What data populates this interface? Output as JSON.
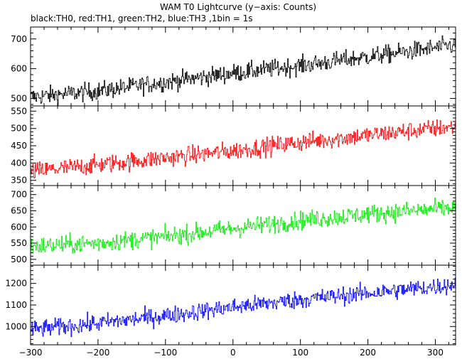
{
  "chart_data": {
    "type": "line",
    "title": "WAM T0 Lightcurve (y−axis: Counts)",
    "subtitle": "black:TH0, red:TH1, green:TH2, blue:TH3 ,1bin = 1s",
    "xlabel": "",
    "ylabel": "",
    "xlim": [
      -300,
      330
    ],
    "x_ticks": [
      -300,
      -200,
      -100,
      0,
      100,
      200,
      300
    ],
    "x_tick_labels": [
      "−300",
      "−200",
      "−100",
      "0",
      "100",
      "200",
      "300"
    ],
    "bin_size_s": 1,
    "grid": false,
    "legend": "none",
    "panels": [
      {
        "name": "TH0",
        "color": "#000000",
        "ylim": [
          475,
          740
        ],
        "y_ticks": [
          500,
          600,
          700
        ],
        "trend_x": [
          -300,
          -200,
          -100,
          0,
          100,
          200,
          300,
          330
        ],
        "trend_y": [
          505,
          525,
          555,
          585,
          610,
          640,
          670,
          680
        ],
        "noise_amplitude": 30
      },
      {
        "name": "TH1",
        "color": "#ff0000",
        "ylim": [
          335,
          565
        ],
        "y_ticks": [
          350,
          400,
          450,
          500,
          550
        ],
        "trend_x": [
          -300,
          -200,
          -100,
          0,
          100,
          200,
          300,
          330
        ],
        "trend_y": [
          375,
          395,
          415,
          435,
          460,
          480,
          500,
          505
        ],
        "noise_amplitude": 26
      },
      {
        "name": "TH2",
        "color": "#00ee00",
        "ylim": [
          482,
          728
        ],
        "y_ticks": [
          500,
          550,
          600,
          650,
          700
        ],
        "trend_x": [
          -300,
          -200,
          -100,
          0,
          100,
          200,
          300,
          330
        ],
        "trend_y": [
          540,
          550,
          570,
          595,
          620,
          640,
          655,
          660
        ],
        "noise_amplitude": 28
      },
      {
        "name": "TH3",
        "color": "#0000ff",
        "ylim": [
          915,
          1285
        ],
        "y_ticks": [
          1000,
          1100,
          1200
        ],
        "trend_x": [
          -300,
          -200,
          -100,
          0,
          100,
          200,
          300,
          330
        ],
        "trend_y": [
          985,
          1015,
          1050,
          1090,
          1125,
          1155,
          1185,
          1195
        ],
        "noise_amplitude": 40
      }
    ]
  }
}
